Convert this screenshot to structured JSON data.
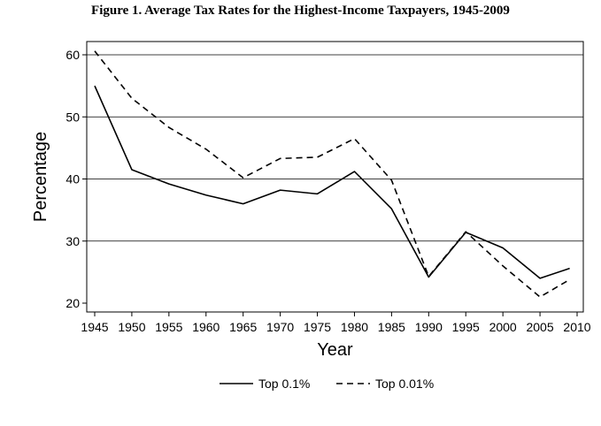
{
  "chart_data": {
    "type": "line",
    "title": "Figure 1. Average Tax Rates for the Highest-Income Taxpayers, 1945-2009",
    "xlabel": "Year",
    "ylabel": "Percentage",
    "xlim": [
      1945,
      2010
    ],
    "ylim": [
      20,
      60
    ],
    "x_ticks": [
      1945,
      1950,
      1955,
      1960,
      1965,
      1970,
      1975,
      1980,
      1985,
      1990,
      1995,
      2000,
      2005,
      2010
    ],
    "y_ticks": [
      20,
      30,
      40,
      50,
      60
    ],
    "grid": "horizontal",
    "legend_position": "bottom",
    "series": [
      {
        "name": "Top 0.1%",
        "style": "solid",
        "color": "#000000",
        "x": [
          1945,
          1950,
          1955,
          1960,
          1965,
          1970,
          1975,
          1980,
          1985,
          1990,
          1995,
          2000,
          2005,
          2009
        ],
        "values": [
          55.0,
          41.5,
          39.2,
          37.4,
          36.0,
          38.2,
          37.6,
          41.2,
          35.2,
          24.2,
          31.4,
          28.9,
          24.0,
          25.6
        ]
      },
      {
        "name": "Top 0.01%",
        "style": "dashed",
        "color": "#000000",
        "x": [
          1945,
          1950,
          1955,
          1960,
          1965,
          1970,
          1975,
          1980,
          1985,
          1990,
          1995,
          2000,
          2005,
          2009
        ],
        "values": [
          60.6,
          53.0,
          48.3,
          44.8,
          40.2,
          43.3,
          43.5,
          46.5,
          39.8,
          24.3,
          31.5,
          26.0,
          21.0,
          23.8
        ]
      }
    ]
  }
}
